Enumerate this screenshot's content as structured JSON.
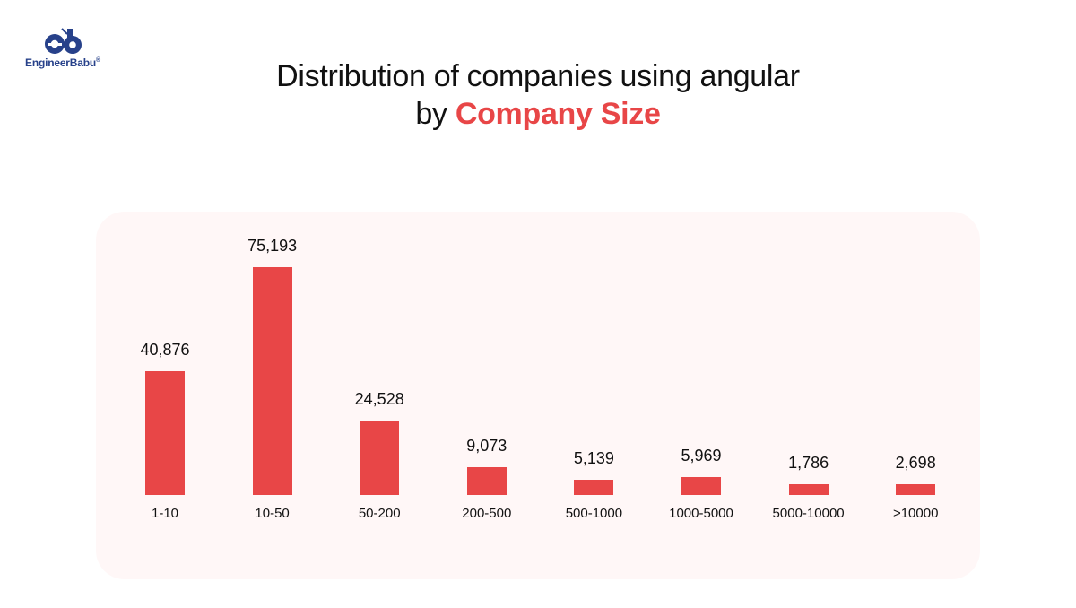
{
  "brand": {
    "name": "EngineerBabu",
    "mark": "®",
    "color": "#27418a"
  },
  "header": {
    "title_line1": "Distribution of companies using angular",
    "title_line2_prefix": "by ",
    "title_line2_accent": "Company Size",
    "accent_color": "#e84647"
  },
  "chart_data": {
    "type": "bar",
    "title": "Distribution of companies using angular by Company Size",
    "xlabel": "Company Size",
    "ylabel": "",
    "categories": [
      "1-10",
      "10-50",
      "50-200",
      "200-500",
      "500-1000",
      "1000-5000",
      "5000-10000",
      ">10000"
    ],
    "values": [
      40876,
      75193,
      24528,
      9073,
      5139,
      5969,
      1786,
      2698
    ],
    "value_labels": [
      "40,876",
      "75,193",
      "24,528",
      "9,073",
      "5,139",
      "5,969",
      "1,786",
      "2,698"
    ],
    "bar_color": "#e84647",
    "grid": false,
    "legend": null
  }
}
